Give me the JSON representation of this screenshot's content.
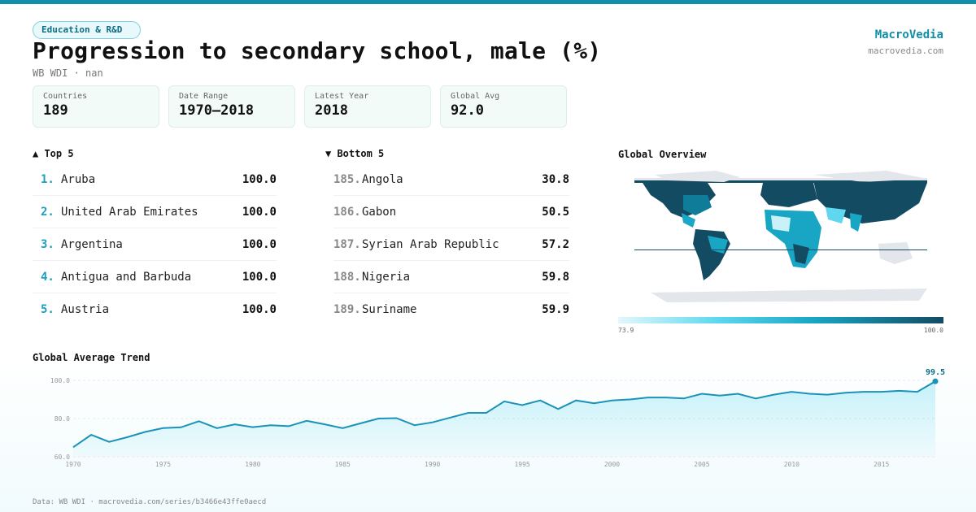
{
  "category": "Education & R&D",
  "title": "Progression to secondary school, male (%)",
  "subtitle": "WB WDI · nan",
  "brand": {
    "name": "MacroVedia",
    "url": "macrovedia.com"
  },
  "stats": [
    {
      "label": "Countries",
      "value": "189"
    },
    {
      "label": "Date Range",
      "value": "1970–2018"
    },
    {
      "label": "Latest Year",
      "value": "2018"
    },
    {
      "label": "Global Avg",
      "value": "92.0"
    }
  ],
  "top5": {
    "heading": "▲ Top 5",
    "items": [
      {
        "rank": "1.",
        "name": "Aruba",
        "value": "100.0"
      },
      {
        "rank": "2.",
        "name": "United Arab Emirates",
        "value": "100.0"
      },
      {
        "rank": "3.",
        "name": "Argentina",
        "value": "100.0"
      },
      {
        "rank": "4.",
        "name": "Antigua and Barbuda",
        "value": "100.0"
      },
      {
        "rank": "5.",
        "name": "Austria",
        "value": "100.0"
      }
    ]
  },
  "bottom5": {
    "heading": "▼ Bottom 5",
    "items": [
      {
        "rank": "185.",
        "name": "Angola",
        "value": "30.8"
      },
      {
        "rank": "186.",
        "name": "Gabon",
        "value": "50.5"
      },
      {
        "rank": "187.",
        "name": "Syrian Arab Republic",
        "value": "57.2"
      },
      {
        "rank": "188.",
        "name": "Nigeria",
        "value": "59.8"
      },
      {
        "rank": "189.",
        "name": "Suriname",
        "value": "59.9"
      }
    ]
  },
  "map": {
    "heading": "Global Overview",
    "legend_min": "73.9",
    "legend_max": "100.0"
  },
  "colors": {
    "accent": "#0f8fa8",
    "line": "#1a93b8",
    "dark": "#134b63",
    "light": "#5fd8ef"
  },
  "chart_data": {
    "type": "area",
    "title": "Global Average Trend",
    "x": [
      1970,
      1971,
      1972,
      1973,
      1974,
      1975,
      1976,
      1977,
      1978,
      1979,
      1980,
      1981,
      1982,
      1983,
      1984,
      1985,
      1986,
      1987,
      1988,
      1989,
      1990,
      1991,
      1992,
      1993,
      1994,
      1995,
      1996,
      1997,
      1998,
      1999,
      2000,
      2001,
      2002,
      2003,
      2004,
      2005,
      2006,
      2007,
      2008,
      2009,
      2010,
      2011,
      2012,
      2013,
      2014,
      2015,
      2016,
      2017,
      2018
    ],
    "values": [
      65,
      71.5,
      67.8,
      70.2,
      73,
      75,
      75.4,
      78.6,
      75,
      77,
      75.5,
      76.5,
      76,
      78.8,
      77,
      75,
      77.5,
      80,
      80.2,
      76.5,
      78,
      80.5,
      83,
      83,
      89,
      87,
      89.5,
      85,
      89.5,
      88,
      89.5,
      90,
      91,
      91,
      90.5,
      93,
      92,
      93,
      90.5,
      92.5,
      94,
      93,
      92.5,
      93.5,
      94,
      94,
      94.5,
      94,
      99.5
    ],
    "ylim": [
      60,
      100
    ],
    "y_ticks": [
      "60.0",
      "80.0",
      "100.0"
    ],
    "x_ticks": [
      "1970",
      "1975",
      "1980",
      "1985",
      "1990",
      "1995",
      "2000",
      "2005",
      "2010",
      "2015"
    ],
    "last_label": "99.5"
  },
  "footer": "Data: WB WDI · macrovedia.com/series/b3466e43ffe0aecd"
}
